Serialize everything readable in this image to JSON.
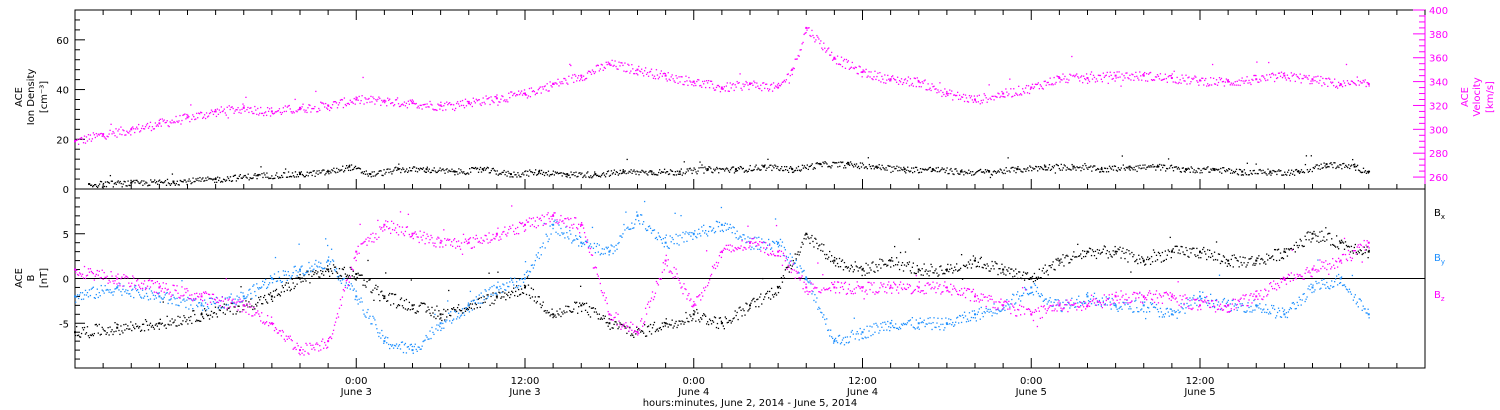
{
  "chart_data": [
    {
      "type": "scatter",
      "panel": "plasma",
      "ylabel_left": [
        "ACE",
        "Ion Density",
        "[cm⁻³]"
      ],
      "ylabel_right": [
        "ACE",
        "Velocity",
        "[km/s]"
      ],
      "x_range_hours": [
        -20,
        76
      ],
      "ylim_left": [
        0,
        72
      ],
      "yticks_left": [
        0,
        20,
        40,
        60
      ],
      "ylim_right": [
        250,
        400
      ],
      "yticks_right": [
        260,
        280,
        300,
        320,
        340,
        360,
        380,
        400
      ],
      "colors": {
        "density": "#000000",
        "velocity": "#ff00ff"
      },
      "series": [
        {
          "name": "Ion Density",
          "axis": "left",
          "color": "#000000",
          "x": [
            -19,
            -16,
            -13,
            -10,
            -7,
            -4,
            -2,
            -0.5,
            1,
            3,
            5,
            7,
            9,
            11,
            13,
            15,
            17,
            19,
            21,
            23,
            25,
            27,
            29,
            31,
            33,
            35,
            37,
            39,
            41,
            43,
            45,
            47,
            49,
            51,
            53,
            55,
            57,
            59,
            61,
            63,
            65,
            67,
            69,
            71,
            72
          ],
          "y": [
            2,
            2.5,
            3,
            4,
            5.5,
            6,
            7,
            9,
            6,
            8,
            8,
            7,
            8,
            6,
            7,
            6,
            6,
            7,
            7,
            7,
            8,
            8,
            9,
            8,
            10,
            10,
            9,
            8,
            8,
            7,
            7,
            8,
            9,
            9,
            8,
            9,
            9,
            8,
            8,
            7,
            7,
            7,
            10,
            9,
            7
          ]
        },
        {
          "name": "Velocity",
          "axis": "right",
          "color": "#ff00ff",
          "x": [
            -20,
            -18,
            -16,
            -14,
            -12,
            -10,
            -8,
            -6,
            -4,
            -2,
            0,
            2,
            4,
            6,
            8,
            10,
            12,
            14,
            16,
            18,
            20,
            22,
            24,
            26,
            28,
            30,
            31,
            32,
            34,
            36,
            38,
            40,
            42,
            44,
            46,
            48,
            50,
            52,
            54,
            56,
            58,
            60,
            62,
            64,
            66,
            68,
            70,
            72
          ],
          "y": [
            290,
            296,
            300,
            305,
            310,
            315,
            318,
            315,
            318,
            320,
            325,
            324,
            322,
            320,
            323,
            326,
            330,
            338,
            345,
            355,
            350,
            345,
            340,
            335,
            338,
            335,
            350,
            385,
            360,
            348,
            342,
            340,
            330,
            325,
            330,
            335,
            343,
            343,
            345,
            345,
            343,
            341,
            340,
            342,
            345,
            342,
            338,
            338
          ]
        }
      ]
    },
    {
      "type": "scatter",
      "panel": "magnetic-field",
      "ylabel_left": [
        "ACE",
        "B",
        "[nT]"
      ],
      "x_range_hours": [
        -20,
        76
      ],
      "ylim_left": [
        -10,
        10
      ],
      "yticks_left": [
        -5,
        0,
        5
      ],
      "zero_line": true,
      "legend_position": "right",
      "colors": {
        "bx": "#000000",
        "by": "#1e90ff",
        "bz": "#ff00ff"
      },
      "series": [
        {
          "name": "Bx",
          "color": "#000000",
          "x": [
            -20,
            -17,
            -14,
            -11,
            -8,
            -6,
            -4,
            -2,
            0,
            2,
            4,
            6,
            8,
            10,
            12,
            14,
            16,
            18,
            20,
            22,
            24,
            26,
            28,
            30,
            32,
            34,
            36,
            38,
            40,
            42,
            44,
            46,
            48,
            50,
            52,
            54,
            56,
            58,
            60,
            62,
            64,
            66,
            68,
            70,
            72
          ],
          "y": [
            -6,
            -5.5,
            -5,
            -4,
            -3,
            -2,
            0,
            1,
            0.5,
            -2,
            -3,
            -4,
            -3,
            -2,
            -1,
            -4,
            -3,
            -5,
            -6,
            -5,
            -4,
            -5,
            -3,
            -1,
            5,
            2,
            1,
            2,
            1,
            1,
            2,
            1,
            0,
            2,
            3,
            3,
            2,
            3,
            3,
            2,
            2,
            3,
            5,
            4,
            3
          ]
        },
        {
          "name": "By",
          "color": "#1e90ff",
          "x": [
            -20,
            -17,
            -14,
            -11,
            -8,
            -6,
            -4,
            -2,
            0,
            2,
            4,
            6,
            8,
            10,
            12,
            14,
            16,
            18,
            20,
            22,
            24,
            26,
            28,
            30,
            32,
            34,
            36,
            38,
            40,
            42,
            44,
            46,
            48,
            50,
            52,
            54,
            56,
            58,
            60,
            62,
            64,
            66,
            68,
            70,
            72
          ],
          "y": [
            -2,
            -1,
            -2,
            -3,
            -2,
            0,
            1,
            2,
            -2,
            -7,
            -8,
            -5,
            -3,
            -1,
            0,
            6,
            4,
            3,
            7,
            4,
            5,
            6,
            4,
            4,
            0,
            -7,
            -6,
            -5,
            -5,
            -5,
            -4,
            -3,
            -1,
            -3,
            -2,
            -3,
            -3,
            -4,
            -2,
            -3,
            -3,
            -4,
            -1,
            0,
            -4
          ]
        },
        {
          "name": "Bz",
          "color": "#ff00ff",
          "x": [
            -20,
            -17,
            -14,
            -11,
            -8,
            -6,
            -4,
            -2,
            0,
            2,
            4,
            6,
            8,
            10,
            12,
            14,
            16,
            18,
            20,
            22,
            24,
            26,
            28,
            30,
            32,
            34,
            36,
            38,
            40,
            42,
            44,
            46,
            48,
            50,
            52,
            54,
            56,
            58,
            60,
            62,
            64,
            66,
            68,
            70,
            72
          ],
          "y": [
            1,
            0,
            -1,
            -2,
            -3,
            -5,
            -8,
            -7,
            3,
            6,
            5,
            4,
            4,
            5,
            6,
            7,
            6,
            -4,
            -6,
            2,
            -3,
            3,
            4,
            3,
            -1,
            -1,
            -1,
            -1,
            -1,
            -1,
            -2,
            -3,
            -4,
            -3,
            -3,
            -2,
            -2,
            -2,
            -3,
            -3,
            -2,
            0,
            1,
            2,
            4
          ]
        }
      ],
      "legend": [
        {
          "label": "B",
          "sub": "x",
          "color": "#000000"
        },
        {
          "label": "B",
          "sub": "y",
          "color": "#1e90ff"
        },
        {
          "label": "B",
          "sub": "z",
          "color": "#ff00ff"
        }
      ]
    }
  ],
  "x_axis": {
    "title": "hours:minutes, June  2, 2014 - June  5, 2014",
    "ticks": [
      {
        "hours": 0,
        "time": "0:00",
        "date": "June 3"
      },
      {
        "hours": 12,
        "time": "12:00",
        "date": "June 3"
      },
      {
        "hours": 24,
        "time": "0:00",
        "date": "June 4"
      },
      {
        "hours": 36,
        "time": "12:00",
        "date": "June 4"
      },
      {
        "hours": 48,
        "time": "0:00",
        "date": "June 5"
      },
      {
        "hours": 60,
        "time": "12:00",
        "date": "June 5"
      }
    ],
    "minor_step_hours": 2
  }
}
